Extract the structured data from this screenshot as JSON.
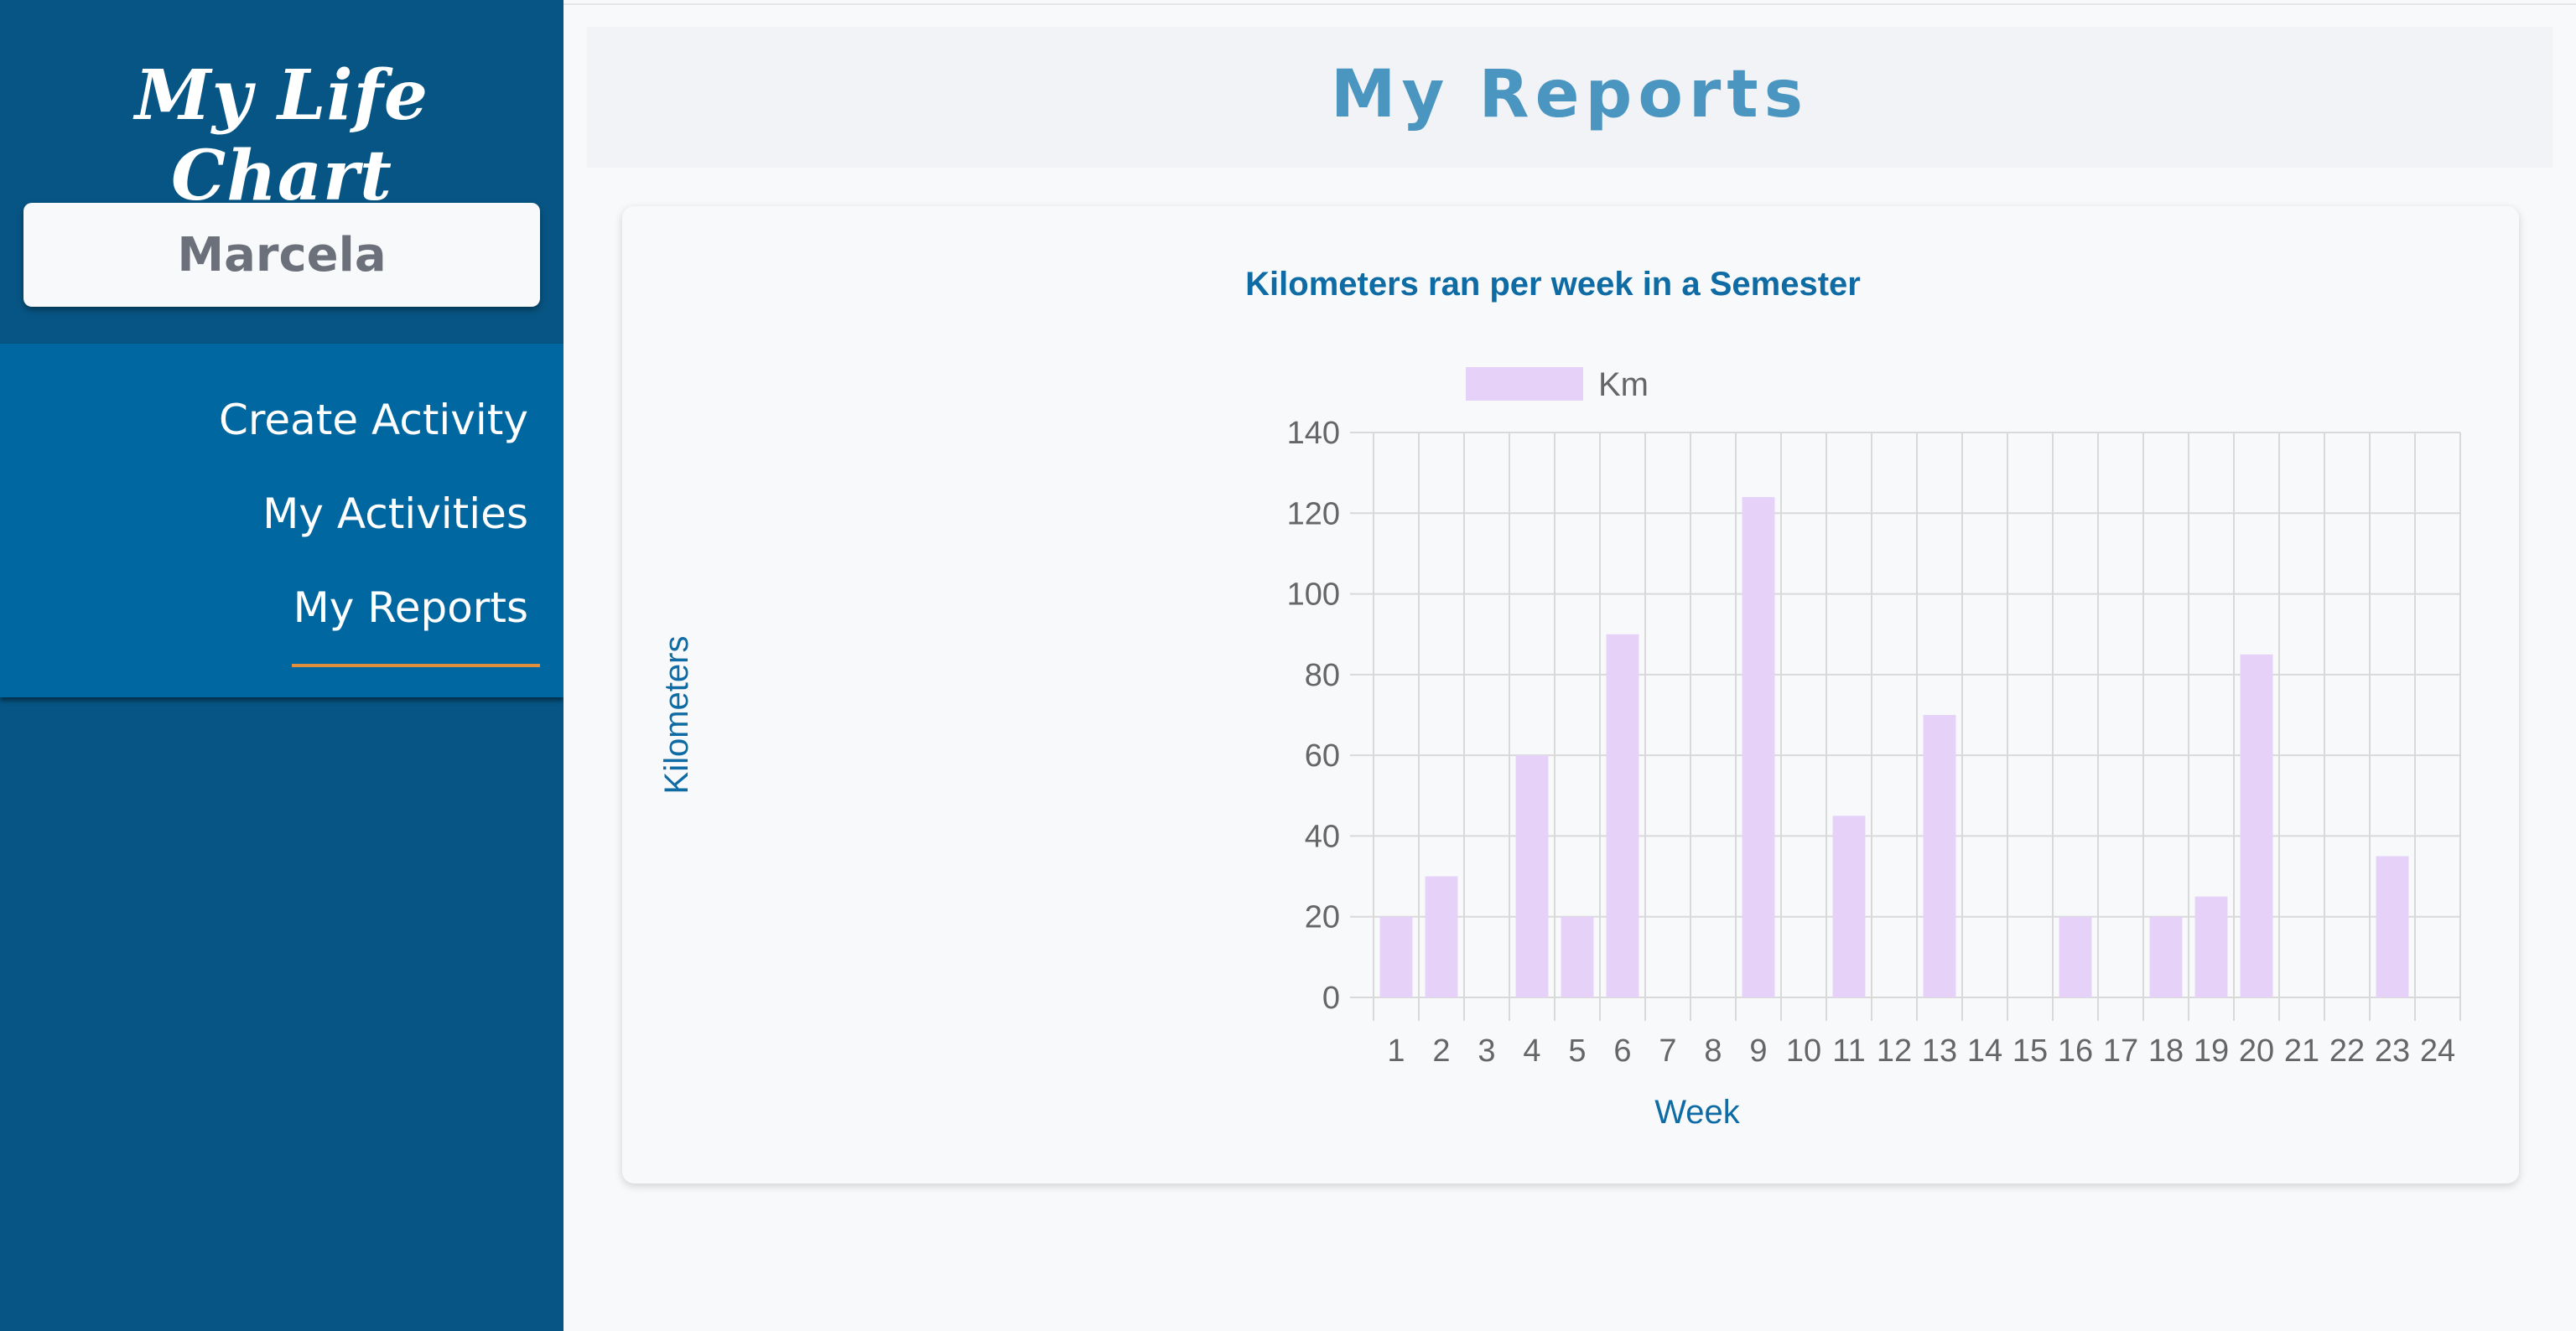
{
  "app": {
    "brand": "My Life Chart"
  },
  "user": {
    "name": "Marcela"
  },
  "nav": {
    "items": [
      {
        "label": "Create Activity"
      },
      {
        "label": "My Activities"
      },
      {
        "label": "My Reports",
        "active": true
      }
    ]
  },
  "page": {
    "title": "My Reports"
  },
  "colors": {
    "sidebar": "#075584",
    "nav": "#0067a1",
    "active_underline": "#e08f3c",
    "bar": "#e6d2f8",
    "title": "#4a96c0",
    "chart_title": "#0e6ba4"
  },
  "chart_data": {
    "type": "bar",
    "title": "Kilometers ran per week in a Semester",
    "xlabel": "Week",
    "ylabel": "Kilometers",
    "ylim": [
      0,
      140
    ],
    "yticks": [
      0,
      20,
      40,
      60,
      80,
      100,
      120,
      140
    ],
    "grid": true,
    "legend_position": "top",
    "categories": [
      "1",
      "2",
      "3",
      "4",
      "5",
      "6",
      "7",
      "8",
      "9",
      "10",
      "11",
      "12",
      "13",
      "14",
      "15",
      "16",
      "17",
      "18",
      "19",
      "20",
      "21",
      "22",
      "23",
      "24"
    ],
    "series": [
      {
        "name": "Km",
        "values": [
          20,
          30,
          0,
          60,
          20,
          90,
          0,
          0,
          124,
          0,
          45,
          0,
          70,
          0,
          0,
          20,
          0,
          20,
          25,
          85,
          0,
          0,
          35,
          0
        ]
      }
    ]
  }
}
